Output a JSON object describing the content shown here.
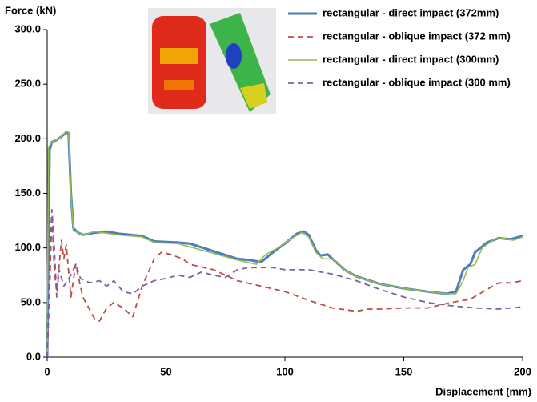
{
  "chart_data": {
    "type": "line",
    "ylabel": "Force (kN)",
    "xlabel": "Displacement (mm)",
    "xlim": [
      0,
      200
    ],
    "xticks": [
      0,
      50,
      100,
      150,
      200
    ],
    "ylim": [
      0,
      300
    ],
    "yticks": [
      {
        "value": 0,
        "label": "0.0"
      },
      {
        "value": 50,
        "label": "50.0"
      },
      {
        "value": 100,
        "label": "100.0"
      },
      {
        "value": 150,
        "label": "150.0"
      },
      {
        "value": 200,
        "label": "200.0"
      },
      {
        "value": 250,
        "label": "250.0"
      },
      {
        "value": 300,
        "label": "300.0"
      }
    ],
    "grid": false,
    "legend": "upper right",
    "series": [
      {
        "name": "rectangular - direct impact (372mm)",
        "color": "#4a7ebb",
        "dashed": false,
        "width": 3,
        "x": [
          0,
          1,
          2,
          4,
          6,
          8,
          9,
          10,
          11,
          13,
          15,
          20,
          25,
          30,
          40,
          45,
          55,
          60,
          70,
          80,
          85,
          90,
          95,
          100,
          105,
          108,
          110,
          113,
          115,
          118,
          120,
          125,
          130,
          140,
          150,
          160,
          168,
          172,
          175,
          178,
          180,
          185,
          190,
          195,
          200
        ],
        "values": [
          0,
          190,
          197,
          199,
          202,
          206,
          205,
          150,
          118,
          114,
          112,
          114,
          115,
          113,
          111,
          106,
          105,
          104,
          97,
          90,
          89,
          87,
          96,
          104,
          113,
          115,
          112,
          98,
          93,
          94,
          90,
          80,
          74,
          67,
          63,
          60,
          58,
          60,
          80,
          85,
          96,
          105,
          109,
          108,
          111
        ]
      },
      {
        "name": "rectangular - oblique impact (372 mm)",
        "color": "#be4b48",
        "dashed": true,
        "width": 1.8,
        "x": [
          0,
          1,
          2,
          3,
          4,
          6,
          7,
          8,
          10,
          12,
          15,
          20,
          22,
          25,
          28,
          32,
          36,
          40,
          45,
          48,
          52,
          57,
          60,
          70,
          80,
          90,
          100,
          110,
          120,
          130,
          135,
          140,
          150,
          160,
          170,
          178,
          185,
          190,
          195,
          200
        ],
        "values": [
          0,
          60,
          130,
          80,
          60,
          107,
          90,
          103,
          55,
          85,
          55,
          35,
          33,
          45,
          50,
          45,
          37,
          65,
          90,
          96,
          94,
          90,
          85,
          80,
          70,
          65,
          60,
          52,
          45,
          42,
          44,
          44,
          45,
          45,
          50,
          53,
          62,
          68,
          68,
          70
        ]
      },
      {
        "name": "rectangular - direct impact (300mm)",
        "color": "#98b954",
        "dashed": false,
        "width": 1.6,
        "x": [
          0,
          0.5,
          2,
          5,
          8,
          9,
          10,
          11,
          15,
          20,
          30,
          40,
          45,
          55,
          60,
          70,
          80,
          88,
          92,
          97,
          103,
          107,
          110,
          113,
          116,
          120,
          125,
          130,
          140,
          150,
          160,
          168,
          172,
          175,
          177,
          180,
          183,
          188,
          192,
          196,
          200
        ],
        "values": [
          0,
          192,
          197,
          200,
          207,
          206,
          150,
          116,
          112,
          115,
          112,
          110,
          105,
          104,
          101,
          95,
          89,
          85,
          94,
          100,
          109,
          114,
          110,
          96,
          90,
          90,
          80,
          74,
          67,
          63,
          60,
          58,
          58,
          70,
          82,
          85,
          100,
          108,
          109,
          107,
          110
        ]
      },
      {
        "name": "rectangular - oblique impact (300 mm)",
        "color": "#7d60a0",
        "dashed": true,
        "width": 1.8,
        "x": [
          0,
          1,
          2,
          3,
          4,
          5,
          7,
          10,
          12,
          14,
          18,
          22,
          25,
          28,
          32,
          36,
          40,
          45,
          50,
          55,
          60,
          65,
          70,
          75,
          80,
          85,
          95,
          100,
          110,
          120,
          130,
          140,
          150,
          160,
          170,
          180,
          190,
          200
        ],
        "values": [
          0,
          90,
          135,
          100,
          55,
          80,
          65,
          75,
          85,
          72,
          68,
          70,
          65,
          70,
          60,
          58,
          65,
          70,
          72,
          75,
          73,
          78,
          75,
          73,
          80,
          82,
          82,
          80,
          80,
          76,
          70,
          62,
          55,
          50,
          47,
          45,
          44,
          46
        ]
      }
    ]
  }
}
